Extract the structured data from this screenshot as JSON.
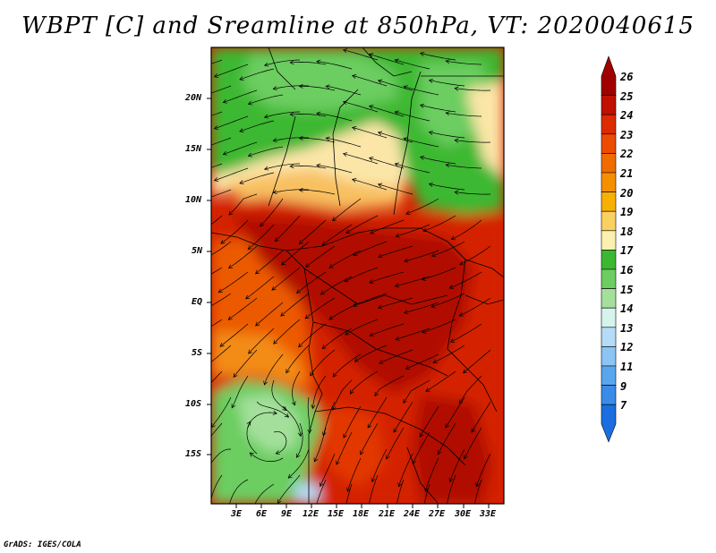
{
  "title": "WBPT [C] and Sreamline at 850hPa, VT: 2020040615",
  "credit": "GrADS: IGES/COLA",
  "lat_labels": [
    "20N",
    "15N",
    "10N",
    "5N",
    "EQ",
    "5S",
    "10S",
    "15S"
  ],
  "lon_labels": [
    "3E",
    "6E",
    "9E",
    "12E",
    "15E",
    "18E",
    "21E",
    "24E",
    "27E",
    "30E",
    "33E"
  ],
  "colorbar": {
    "labels": [
      "26",
      "25",
      "24",
      "23",
      "22",
      "21",
      "20",
      "19",
      "18",
      "17",
      "16",
      "15",
      "14",
      "13",
      "12",
      "11",
      "9",
      "7"
    ],
    "colors": [
      "#a00000",
      "#c01000",
      "#dd2a00",
      "#ec4c00",
      "#f06c00",
      "#f49000",
      "#f8b000",
      "#fad060",
      "#fcf0b0",
      "#3cb830",
      "#6ccd60",
      "#a4e09c",
      "#d4f4ec",
      "#b4dcf8",
      "#8cc4f4",
      "#5aa6ee",
      "#3a8ce8",
      "#1a6ee0"
    ]
  },
  "map_colors": {
    "deep_red": "#b00a00",
    "red": "#d42000",
    "red_orange": "#e23800",
    "orange": "#ec5a00",
    "light_orange": "#f38c14",
    "peach": "#f8c060",
    "cream": "#fbe6a8",
    "green": "#3cb830",
    "mid_green": "#6ccd60",
    "light_green": "#a4e09c",
    "pale": "#d4f4ec",
    "blue": "#b4dcf8"
  }
}
